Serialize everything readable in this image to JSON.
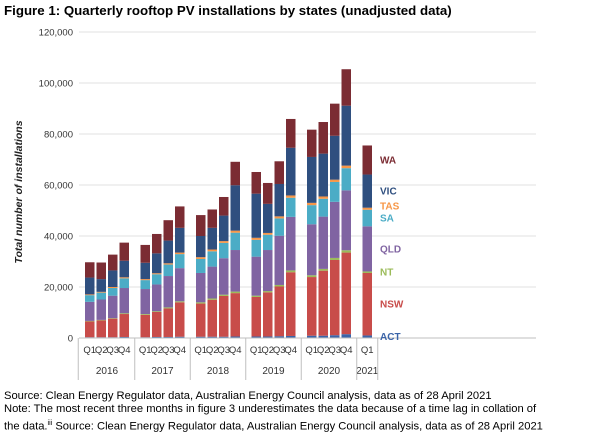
{
  "figure": {
    "title": "Figure 1: Quarterly rooftop PV installations by states (unadjusted data)"
  },
  "notes": {
    "source_line": "Source: Clean Energy Regulator data, Australian Energy Council analysis, data as of 28 April 2021",
    "note_line_a": "Note: The most recent three months in figure 3 underestimates the data because of a time lag in collation of",
    "note_line_b_pre": "the data.",
    "note_superscript": "iii",
    "note_line_b_post": " Source: Clean Energy Regulator data, Australian Energy Council analysis, data as of 28 April 2021"
  },
  "chart_data": {
    "type": "bar",
    "stacked": true,
    "ylabel": "Total number of installations",
    "xlabel": "",
    "ylim": [
      0,
      120000
    ],
    "y_ticks": [
      0,
      20000,
      40000,
      60000,
      80000,
      100000,
      120000
    ],
    "y_tick_labels": [
      "0",
      "20,000",
      "40,000",
      "60,000",
      "80,000",
      "100,000",
      "120,000"
    ],
    "grid": true,
    "legend_placement": "inline labels at right of last bar",
    "categories": [
      "2016 Q1",
      "2016 Q2",
      "2016 Q3",
      "2016 Q4",
      "2017 Q1",
      "2017 Q2",
      "2017 Q3",
      "2017 Q4",
      "2018 Q1",
      "2018 Q2",
      "2018 Q3",
      "2018 Q4",
      "2019 Q1",
      "2019 Q2",
      "2019 Q3",
      "2019 Q4",
      "2020 Q1",
      "2020 Q2",
      "2020 Q3",
      "2020 Q4",
      "2021 Q1"
    ],
    "quarter_labels": [
      "Q1",
      "Q2",
      "Q3",
      "Q4",
      "Q1",
      "Q2",
      "Q3",
      "Q4",
      "Q1",
      "Q2",
      "Q3",
      "Q4",
      "Q1",
      "Q2",
      "Q3",
      "Q4",
      "Q1",
      "Q2",
      "Q3",
      "Q4",
      "Q1"
    ],
    "year_groups": [
      {
        "label": "2016",
        "count": 4
      },
      {
        "label": "2017",
        "count": 4
      },
      {
        "label": "2018",
        "count": 4
      },
      {
        "label": "2019",
        "count": 4
      },
      {
        "label": "2020",
        "count": 4
      },
      {
        "label": "2021",
        "count": 1
      }
    ],
    "series": [
      {
        "name": "ACT",
        "color": "#3b64a8",
        "values": [
          300,
          300,
          300,
          400,
          300,
          400,
          400,
          500,
          500,
          500,
          500,
          600,
          600,
          600,
          700,
          800,
          900,
          900,
          1100,
          1500,
          1000
        ]
      },
      {
        "name": "NSW",
        "color": "#c84c4a",
        "values": [
          6200,
          6600,
          7300,
          9000,
          8800,
          9800,
          11200,
          13500,
          13000,
          14500,
          16000,
          17000,
          15500,
          17300,
          19500,
          25000,
          23000,
          25500,
          29500,
          32000,
          24500
        ]
      },
      {
        "name": "NT",
        "color": "#9bbb59",
        "values": [
          200,
          200,
          200,
          300,
          300,
          300,
          400,
          400,
          500,
          500,
          500,
          600,
          500,
          500,
          600,
          700,
          700,
          700,
          800,
          900,
          600
        ]
      },
      {
        "name": "QLD",
        "color": "#8064a2",
        "values": [
          7500,
          8000,
          8800,
          9900,
          9800,
          10500,
          12300,
          13000,
          11500,
          12500,
          14300,
          16300,
          15300,
          16100,
          19300,
          21000,
          20000,
          20500,
          22000,
          23500,
          17700
        ]
      },
      {
        "name": "SA",
        "color": "#4bacc6",
        "values": [
          2600,
          2700,
          3000,
          3800,
          3500,
          4000,
          4500,
          5500,
          5500,
          6000,
          6000,
          6800,
          6600,
          6000,
          6800,
          7500,
          7500,
          7000,
          7800,
          8700,
          6500
        ]
      },
      {
        "name": "TAS",
        "color": "#f79646",
        "values": [
          300,
          300,
          400,
          400,
          400,
          400,
          500,
          600,
          700,
          700,
          700,
          800,
          800,
          700,
          800,
          900,
          900,
          900,
          900,
          1000,
          800
        ]
      },
      {
        "name": "VIC",
        "color": "#2f4f7f",
        "values": [
          6600,
          5000,
          6500,
          6500,
          6400,
          7800,
          8900,
          9700,
          8300,
          8500,
          10000,
          17800,
          17300,
          11400,
          12700,
          18700,
          18000,
          16800,
          17200,
          23500,
          13000
        ]
      },
      {
        "name": "WA",
        "color": "#7b2c33",
        "values": [
          6000,
          6500,
          6200,
          7100,
          7000,
          7600,
          8000,
          8400,
          8200,
          7200,
          7300,
          9200,
          8500,
          8200,
          8900,
          11300,
          10700,
          12400,
          12600,
          14300,
          11400
        ]
      }
    ]
  }
}
